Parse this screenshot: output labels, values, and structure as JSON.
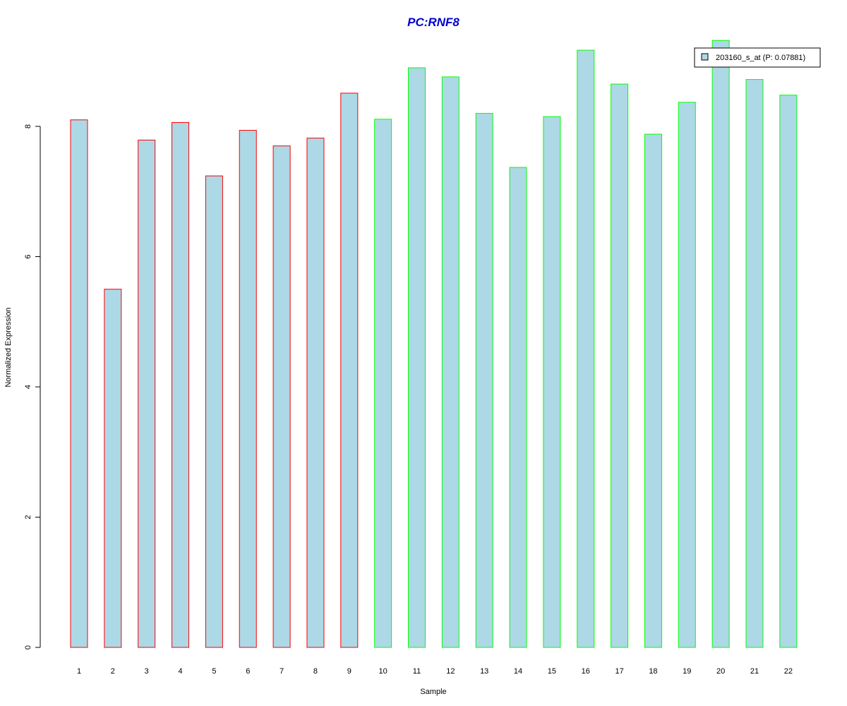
{
  "chart_data": {
    "type": "bar",
    "title": "PC:RNF8",
    "xlabel": "Sample",
    "ylabel": "Normalized Expression",
    "categories": [
      "1",
      "2",
      "3",
      "4",
      "5",
      "6",
      "7",
      "8",
      "9",
      "10",
      "11",
      "12",
      "13",
      "14",
      "15",
      "16",
      "17",
      "18",
      "19",
      "20",
      "21",
      "22"
    ],
    "series": [
      {
        "name": "203160_s_at (P: 0.07881)",
        "values": [
          8.1,
          5.5,
          7.79,
          8.06,
          7.24,
          7.94,
          7.7,
          7.82,
          8.51,
          8.11,
          8.9,
          8.76,
          8.2,
          7.37,
          8.15,
          9.17,
          8.65,
          7.88,
          8.37,
          9.32,
          8.72,
          8.48
        ]
      }
    ],
    "group_border_colors": [
      "#ff0000",
      "#ff0000",
      "#ff0000",
      "#ff0000",
      "#ff0000",
      "#ff0000",
      "#ff0000",
      "#ff0000",
      "#ff0000",
      "#00ff00",
      "#00ff00",
      "#00ff00",
      "#00ff00",
      "#00ff00",
      "#00ff00",
      "#00ff00",
      "#00ff00",
      "#00ff00",
      "#00ff00",
      "#00ff00",
      "#00ff00",
      "#00ff00"
    ],
    "bar_fill": "#add8e6",
    "title_color": "#0000cd",
    "yticks": [
      0,
      2,
      4,
      6,
      8
    ],
    "ylim": [
      0,
      9.32
    ],
    "grid": false,
    "legend_position": "top-right"
  }
}
